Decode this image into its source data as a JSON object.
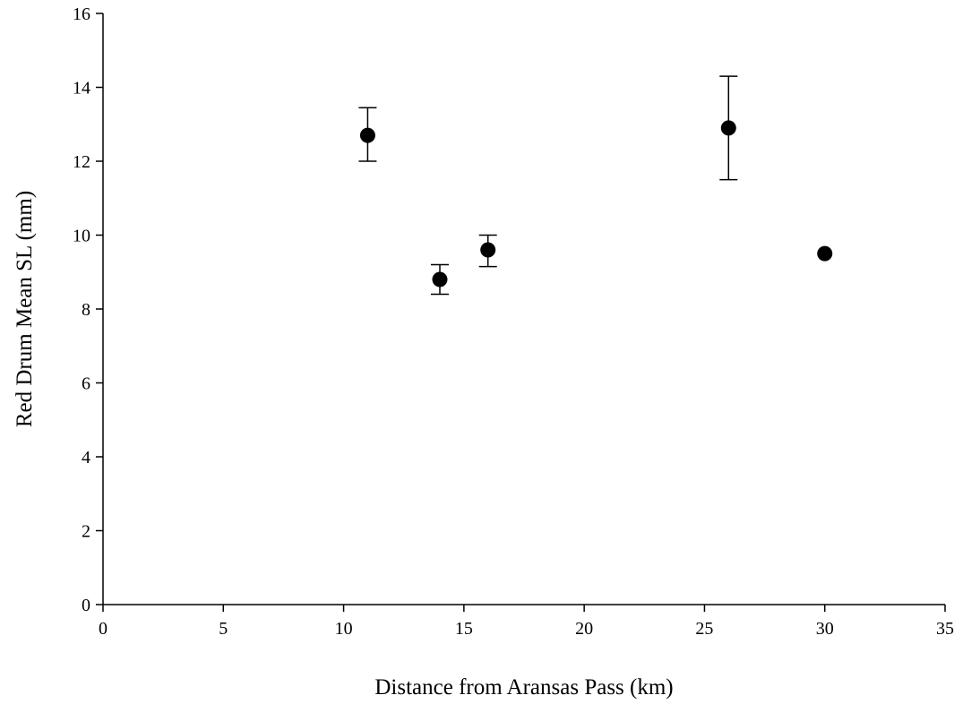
{
  "chart_data": {
    "type": "scatter",
    "title": "",
    "xlabel": "Distance from Aransas Pass (km)",
    "ylabel": "Red Drum Mean SL (mm)",
    "xlim": [
      0,
      35
    ],
    "ylim": [
      0,
      16
    ],
    "x_ticks": [
      "0",
      "5",
      "10",
      "15",
      "20",
      "25",
      "30",
      "35"
    ],
    "y_ticks": [
      "0",
      "2",
      "4",
      "6",
      "8",
      "10",
      "12",
      "14",
      "16"
    ],
    "grid": false,
    "legend": "none",
    "marker_color": "#000000",
    "points": [
      {
        "x": 11,
        "y": 12.7,
        "err_low": 12.0,
        "err_high": 13.45
      },
      {
        "x": 14,
        "y": 8.8,
        "err_low": 8.4,
        "err_high": 9.2
      },
      {
        "x": 16,
        "y": 9.6,
        "err_low": 9.15,
        "err_high": 10.0
      },
      {
        "x": 26,
        "y": 12.9,
        "err_low": 11.5,
        "err_high": 14.3
      },
      {
        "x": 30,
        "y": 9.5,
        "err_low": null,
        "err_high": null
      }
    ]
  }
}
